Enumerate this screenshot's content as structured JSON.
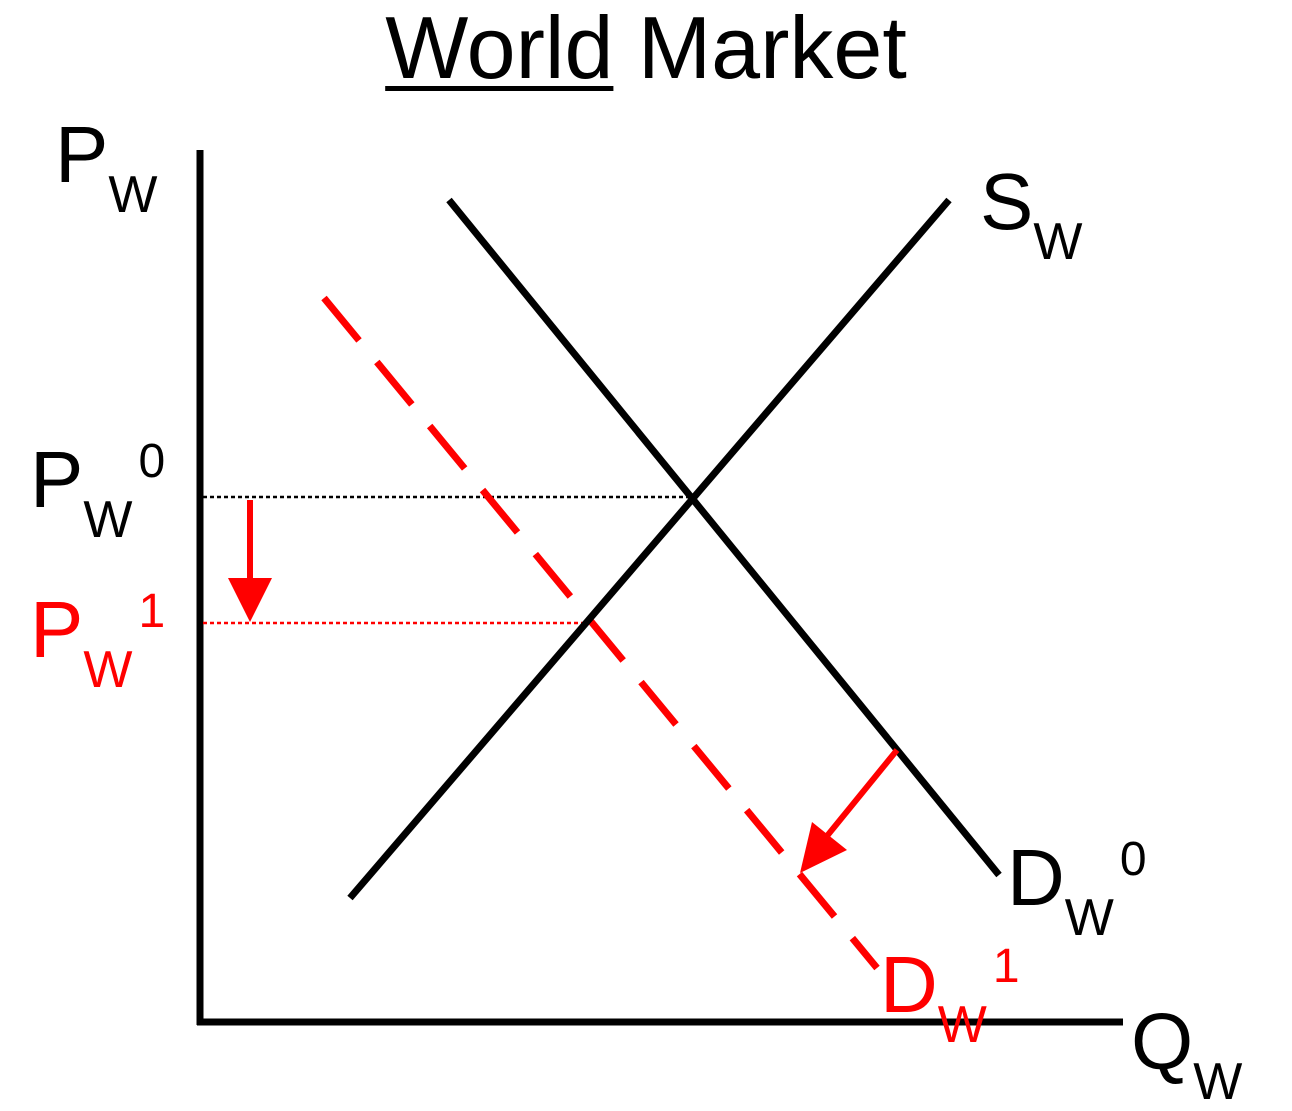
{
  "title": {
    "underlined": "World",
    "rest": "Market"
  },
  "axes": {
    "y_label_main": "P",
    "y_label_sub": "W",
    "x_label_main": "Q",
    "x_label_sub": "W"
  },
  "labels": {
    "supply": {
      "main": "S",
      "sub": "W"
    },
    "demand0": {
      "main": "D",
      "sub": "W",
      "sup": "0"
    },
    "demand1": {
      "main": "D",
      "sub": "W",
      "sup": "1"
    },
    "price0": {
      "main": "P",
      "sub": "W",
      "sup": "0"
    },
    "price1": {
      "main": "P",
      "sub": "W",
      "sup": "1"
    }
  },
  "colors": {
    "axis": "#000000",
    "original": "#000000",
    "shift": "#ff0000"
  }
}
